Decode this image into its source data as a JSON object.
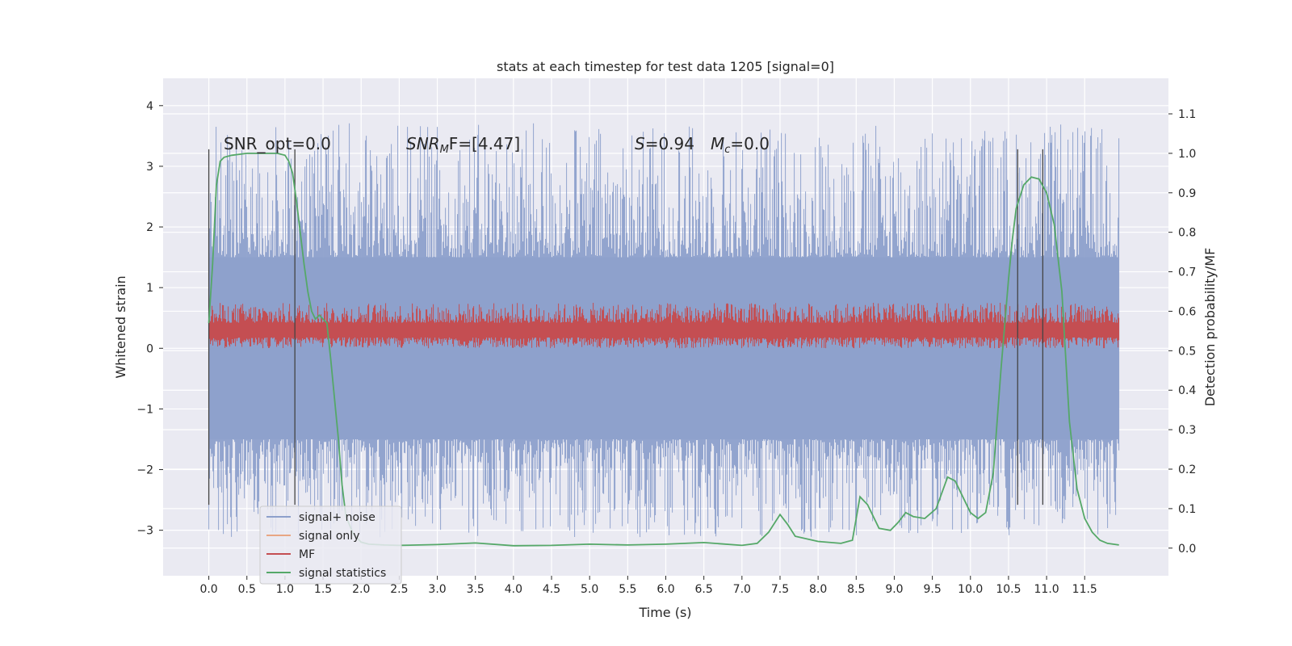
{
  "chart_data": {
    "type": "line",
    "title": "stats at each timestep for test data 1205 [signal=0]",
    "xlabel": "Time (s)",
    "ylabel": "Whitened strain",
    "y2label": "Detection probability/MF",
    "xlim": [
      -0.6,
      12.6
    ],
    "ylim": [
      -3.75,
      4.45
    ],
    "y2lim": [
      -0.07,
      1.19
    ],
    "x_ticks": [
      "0.0",
      "0.5",
      "1.0",
      "1.5",
      "2.0",
      "2.5",
      "3.0",
      "3.5",
      "4.0",
      "4.5",
      "5.0",
      "5.5",
      "6.0",
      "6.5",
      "7.0",
      "7.5",
      "8.0",
      "8.5",
      "9.0",
      "9.5",
      "10.0",
      "10.5",
      "11.0",
      "11.5"
    ],
    "y_ticks": [
      "4",
      "3",
      "2",
      "1",
      "0",
      "−1",
      "−2",
      "−3"
    ],
    "y2_ticks": [
      "1.1",
      "1.0",
      "0.9",
      "0.8",
      "0.7",
      "0.6",
      "0.5",
      "0.4",
      "0.3",
      "0.2",
      "0.1",
      "0.0"
    ],
    "grid": true,
    "legend_position": "lower-left",
    "annotations": {
      "snr_opt": "SNR_opt=0.0",
      "snr_mf_sym": "SNR",
      "snr_mf_sub": "M",
      "snr_mf_rest": "F=[4.47]",
      "s_sym": "S",
      "s_rest": "=0.94",
      "mc_sym": "M",
      "mc_sub": "c",
      "mc_rest": "=0.0"
    },
    "noise_range": {
      "x": [
        0.0,
        11.95
      ],
      "typical_low": -1.5,
      "typical_high": 1.5,
      "max": 4.1,
      "min": -3.4
    },
    "mf_range": {
      "x": [
        0.0,
        11.95
      ],
      "baseline": 0.3,
      "low": 0.0,
      "high": 0.75
    },
    "vertical_lines": [
      0.0,
      1.13,
      10.62,
      10.95
    ],
    "series": [
      {
        "name": "signal+ noise",
        "color": "#8da0cb",
        "kind": "noise"
      },
      {
        "name": "signal only",
        "color": "#e8a683",
        "kind": "none"
      },
      {
        "name": "MF",
        "color": "#c44e52",
        "kind": "mf"
      },
      {
        "name": "signal statistics",
        "color": "#55a868",
        "kind": "stat",
        "x": [
          0.0,
          0.05,
          0.1,
          0.15,
          0.2,
          0.3,
          0.5,
          0.7,
          0.9,
          1.0,
          1.05,
          1.1,
          1.15,
          1.2,
          1.25,
          1.3,
          1.35,
          1.4,
          1.45,
          1.5,
          1.55,
          1.6,
          1.65,
          1.7,
          1.75,
          1.8,
          1.9,
          2.0,
          2.1,
          2.3,
          2.5,
          3.0,
          3.5,
          4.0,
          4.5,
          5.0,
          5.5,
          6.0,
          6.5,
          7.0,
          7.2,
          7.35,
          7.5,
          7.6,
          7.7,
          8.0,
          8.3,
          8.45,
          8.55,
          8.65,
          8.8,
          8.95,
          9.05,
          9.15,
          9.25,
          9.4,
          9.55,
          9.7,
          9.8,
          9.9,
          10.0,
          10.1,
          10.2,
          10.3,
          10.4,
          10.5,
          10.55,
          10.6,
          10.7,
          10.8,
          10.9,
          11.0,
          11.1,
          11.2,
          11.3,
          11.4,
          11.5,
          11.6,
          11.7,
          11.8,
          11.95
        ],
        "y": [
          0.57,
          0.72,
          0.92,
          0.98,
          0.99,
          0.995,
          1.0,
          1.0,
          1.0,
          0.995,
          0.98,
          0.95,
          0.88,
          0.8,
          0.72,
          0.65,
          0.6,
          0.58,
          0.59,
          0.58,
          0.57,
          0.48,
          0.38,
          0.28,
          0.16,
          0.08,
          0.035,
          0.015,
          0.01,
          0.008,
          0.007,
          0.009,
          0.013,
          0.006,
          0.007,
          0.01,
          0.008,
          0.01,
          0.014,
          0.007,
          0.012,
          0.04,
          0.085,
          0.06,
          0.03,
          0.017,
          0.012,
          0.02,
          0.13,
          0.11,
          0.05,
          0.045,
          0.065,
          0.09,
          0.08,
          0.075,
          0.1,
          0.18,
          0.17,
          0.13,
          0.09,
          0.075,
          0.09,
          0.19,
          0.45,
          0.68,
          0.78,
          0.86,
          0.92,
          0.94,
          0.935,
          0.9,
          0.82,
          0.65,
          0.32,
          0.15,
          0.075,
          0.04,
          0.02,
          0.012,
          0.008
        ]
      }
    ]
  }
}
